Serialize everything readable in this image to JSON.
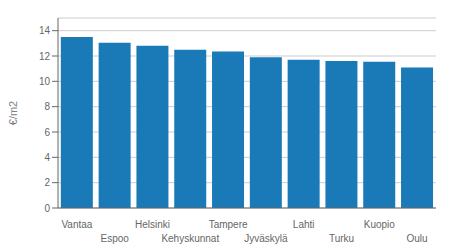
{
  "chart_data": {
    "type": "bar",
    "ylabel": "€/m2",
    "categories": [
      "Vantaa",
      "Espoo",
      "Helsinki",
      "Kehyskunnat",
      "Tampere",
      "Jyväskylä",
      "Lahti",
      "Turku",
      "Kuopio",
      "Oulu"
    ],
    "values": [
      13.5,
      13.05,
      12.8,
      12.5,
      12.35,
      11.9,
      11.7,
      11.6,
      11.55,
      11.1
    ],
    "color": "#1a7ab8",
    "ylim": [
      0,
      15
    ],
    "yticks": [
      0,
      2,
      4,
      6,
      8,
      10,
      12,
      14
    ],
    "grid": true
  }
}
